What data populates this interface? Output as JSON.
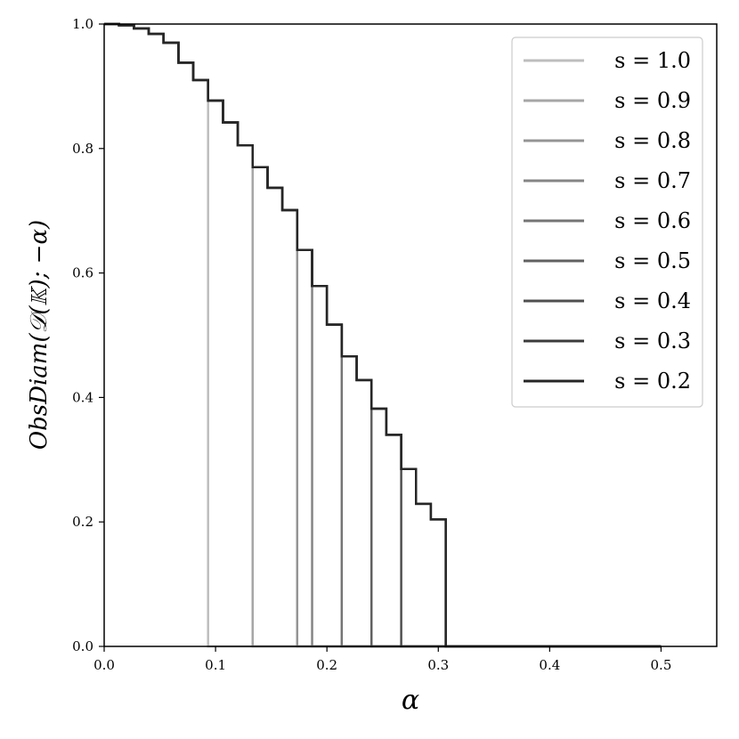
{
  "chart_data": {
    "type": "line",
    "xlabel": "α",
    "ylabel": "ObsDiam(𝒟(𝕂); −α)",
    "xlim": [
      0.0,
      0.55
    ],
    "ylim": [
      0.0,
      1.0
    ],
    "xticks": [
      "0.0",
      "0.1",
      "0.2",
      "0.3",
      "0.4",
      "0.5"
    ],
    "yticks": [
      "0.0",
      "0.2",
      "0.4",
      "0.6",
      "0.8",
      "1.0"
    ],
    "grid": false,
    "legend_position": "top-right",
    "envelope": {
      "x": [
        0.0,
        0.0133,
        0.0267,
        0.04,
        0.0533,
        0.0667,
        0.08,
        0.0933,
        0.1067,
        0.12,
        0.1333,
        0.1467,
        0.16,
        0.1733,
        0.1867,
        0.2,
        0.2133,
        0.2267,
        0.24,
        0.2533,
        0.2667,
        0.28,
        0.2933,
        0.3067
      ],
      "y": [
        1.0,
        0.998,
        0.993,
        0.984,
        0.97,
        0.938,
        0.91,
        0.877,
        0.842,
        0.805,
        0.77,
        0.737,
        0.701,
        0.637,
        0.579,
        0.517,
        0.466,
        0.428,
        0.382,
        0.34,
        0.285,
        0.229,
        0.204,
        0.0
      ]
    },
    "x_max": 0.5,
    "series": [
      {
        "name": "s = 1.0",
        "cutoff": 0.0933,
        "color": "#bdbdbd"
      },
      {
        "name": "s = 0.9",
        "cutoff": 0.1333,
        "color": "#a6a6a6"
      },
      {
        "name": "s = 0.8",
        "cutoff": 0.1733,
        "color": "#949494"
      },
      {
        "name": "s = 0.7",
        "cutoff": 0.1867,
        "color": "#858585"
      },
      {
        "name": "s = 0.6",
        "cutoff": 0.2133,
        "color": "#757575"
      },
      {
        "name": "s = 0.5",
        "cutoff": 0.24,
        "color": "#616161"
      },
      {
        "name": "s = 0.4",
        "cutoff": 0.2667,
        "color": "#4f4f4f"
      },
      {
        "name": "s = 0.3",
        "cutoff": 0.3067,
        "color": "#3b3b3b"
      },
      {
        "name": "s = 0.2",
        "cutoff": 0.3067,
        "color": "#262626"
      }
    ]
  }
}
